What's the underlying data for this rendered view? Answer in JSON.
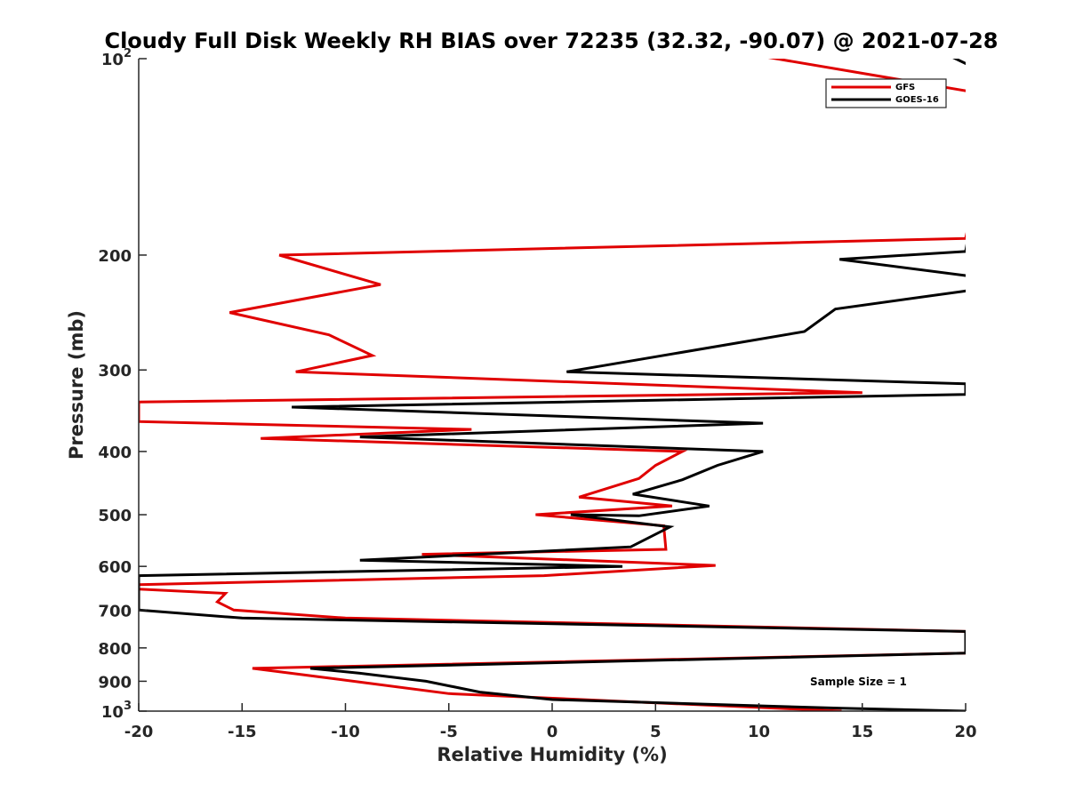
{
  "chart_data": {
    "type": "line",
    "title": "Cloudy Full Disk Weekly RH BIAS over 72235 (32.32, -90.07) @ 2021-07-28",
    "xlabel": "Relative Humidity (%)",
    "ylabel": "Pressure (mb)",
    "xlim": [
      -20,
      20
    ],
    "ylim": [
      100,
      1000
    ],
    "yscale": "log",
    "y_reversed": true,
    "x_ticks": [
      -20,
      -15,
      -10,
      -5,
      0,
      5,
      10,
      15,
      20
    ],
    "x_tick_labels": [
      "-20",
      "-15",
      "-10",
      "-5",
      "0",
      "5",
      "10",
      "15",
      "20"
    ],
    "y_ticks": [
      100,
      200,
      300,
      400,
      500,
      600,
      700,
      800,
      900,
      1000
    ],
    "y_tick_labels": [
      "10^2",
      "200",
      "300",
      "400",
      "500",
      "600",
      "700",
      "800",
      "900",
      "10^3"
    ],
    "grid": false,
    "legend_position": "top-right",
    "annotation": "Sample Size = 1",
    "series": [
      {
        "name": "GFS",
        "color": "#e00000",
        "x": [
          9.1,
          20.5,
          21.5,
          20,
          -13.2,
          -8.3,
          -15.6,
          -10.8,
          -8.7,
          -12.4,
          15.0,
          -20.0,
          -20.0,
          -20.0,
          -3.9,
          -14.1,
          6.3,
          5.0,
          4.2,
          1.3,
          5.8,
          -0.8,
          5.4,
          5.5,
          -6.3,
          7.9,
          -0.4,
          -20.0,
          -20.0,
          -15.8,
          -16.2,
          -15.4,
          -10.0,
          20.0,
          20.0,
          20.0,
          -14.5,
          -12.0,
          -9.0,
          -5.0,
          14.0
        ],
        "y": [
          97.9,
          112.7,
          113.5,
          188.6,
          200,
          222,
          245,
          265,
          285,
          302,
          325,
          336,
          347,
          360,
          370,
          382,
          400,
          420,
          440,
          470,
          485,
          500,
          520,
          565,
          575,
          598,
          620,
          640,
          650,
          660,
          680,
          700,
          720,
          755,
          767,
          815,
          860,
          880,
          905,
          940,
          1000
        ]
      },
      {
        "name": "GOES-16",
        "color": "#000000",
        "x": [
          18.9,
          20.5,
          21.5,
          20.0,
          13.9,
          20.0,
          21.5,
          20.0,
          13.7,
          12.2,
          0.7,
          20.0,
          20.0,
          -12.6,
          10.2,
          -9.3,
          10.2,
          8.0,
          6.3,
          3.9,
          7.6,
          4.2,
          0.9,
          5.7,
          3.8,
          -9.3,
          3.4,
          -20.0,
          -20.0,
          -20.0,
          -15.0,
          20.0,
          20.0,
          20.0,
          -11.7,
          -9.3,
          -6.1,
          -3.5,
          0.0,
          14.0,
          20.0
        ],
        "y": [
          97.9,
          103.5,
          105.5,
          197.5,
          203,
          215,
          217,
          227,
          242,
          262,
          302,
          315,
          327,
          342,
          362,
          380,
          400,
          420,
          442,
          465,
          485,
          502,
          500,
          522,
          560,
          587,
          600,
          620,
          630,
          700,
          720,
          755,
          770,
          815,
          860,
          875,
          900,
          935,
          960,
          990,
          1000
        ]
      }
    ]
  }
}
